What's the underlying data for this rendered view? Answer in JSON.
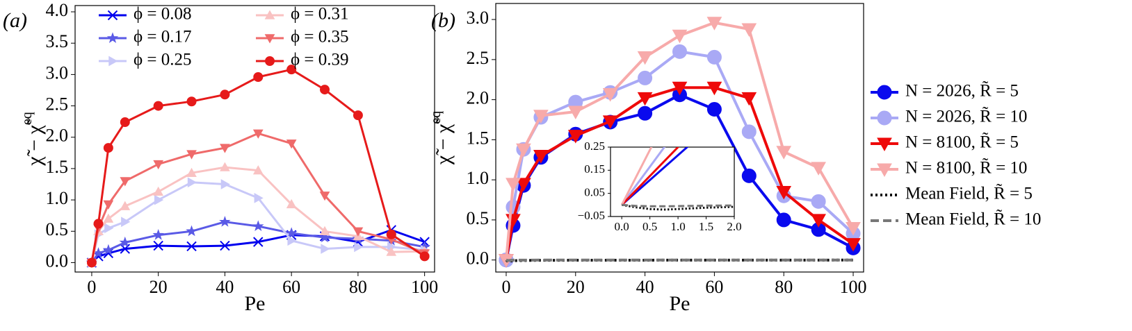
{
  "chart_data": [
    {
      "type": "line",
      "panel_label": "(a)",
      "x_label": "Pe",
      "y_label": "χ̃ − χ̃",
      "y_label_sup": "eq",
      "x": [
        0,
        2,
        5,
        10,
        20,
        30,
        40,
        50,
        60,
        70,
        80,
        90,
        100
      ],
      "xlim": [
        -5,
        103
      ],
      "ylim": [
        -0.15,
        4.1
      ],
      "xticks": [
        0,
        20,
        40,
        60,
        80,
        100
      ],
      "yticks": [
        {
          "value": 0,
          "label": "0.0"
        },
        {
          "value": 0.5,
          "label": "0.5"
        },
        {
          "value": 1,
          "label": "1.0"
        },
        {
          "value": 1.5,
          "label": "1.5"
        },
        {
          "value": 2,
          "label": "2.0"
        },
        {
          "value": 2.5,
          "label": "2.5"
        },
        {
          "value": 3,
          "label": "3.0"
        },
        {
          "value": 3.5,
          "label": "3.5"
        },
        {
          "value": 4,
          "label": "4.0"
        }
      ],
      "legend": "upper left",
      "series": [
        {
          "name": "ϕ = 0.08",
          "color": "#0000ee",
          "marker": "x",
          "values": [
            0,
            0.1,
            0.15,
            0.22,
            0.27,
            0.26,
            0.27,
            0.33,
            0.44,
            0.42,
            0.33,
            0.52,
            0.33
          ]
        },
        {
          "name": "ϕ = 0.17",
          "color": "#5a5ae6",
          "marker": "*",
          "values": [
            0,
            0.15,
            0.2,
            0.32,
            0.44,
            0.5,
            0.65,
            0.58,
            0.47,
            0.4,
            0.38,
            0.35,
            0.25
          ]
        },
        {
          "name": "ϕ = 0.25",
          "color": "#c8c8f8",
          "marker": ">",
          "values": [
            0,
            0.45,
            0.55,
            0.65,
            1.0,
            1.28,
            1.25,
            1.03,
            0.35,
            0.22,
            0.25,
            0.25,
            0.2
          ]
        },
        {
          "name": "ϕ = 0.31",
          "color": "#f9c2c2",
          "marker": "^",
          "values": [
            0,
            0.5,
            0.7,
            0.9,
            1.13,
            1.43,
            1.52,
            1.47,
            0.93,
            0.5,
            0.42,
            0.17,
            0.18
          ]
        },
        {
          "name": "ϕ = 0.35",
          "color": "#ef6a6a",
          "marker": "v",
          "values": [
            0,
            0.55,
            0.93,
            1.3,
            1.57,
            1.73,
            1.83,
            2.06,
            1.9,
            1.07,
            0.5,
            0.37,
            0.15
          ]
        },
        {
          "name": "ϕ = 0.39",
          "color": "#e61a1a",
          "marker": "o",
          "values": [
            0,
            0.62,
            1.83,
            2.24,
            2.5,
            2.57,
            2.68,
            2.96,
            3.08,
            2.76,
            2.35,
            0.45,
            0.1
          ]
        }
      ]
    },
    {
      "type": "line",
      "panel_label": "(b)",
      "x_label": "Pe",
      "y_label": "χ̃ − χ̃",
      "y_label_sup": "eq",
      "x": [
        0,
        2,
        5,
        10,
        20,
        30,
        40,
        50,
        60,
        70,
        80,
        90,
        100
      ],
      "xlim": [
        -3,
        103
      ],
      "ylim": [
        -0.15,
        3.2
      ],
      "xticks": [
        0,
        20,
        40,
        60,
        80,
        100
      ],
      "yticks": [
        {
          "value": 0,
          "label": "0.0"
        },
        {
          "value": 0.5,
          "label": "0.5"
        },
        {
          "value": 1,
          "label": "1.0"
        },
        {
          "value": 1.5,
          "label": "1.5"
        },
        {
          "value": 2,
          "label": "2.0"
        },
        {
          "value": 2.5,
          "label": "2.5"
        },
        {
          "value": 3,
          "label": "3.0"
        }
      ],
      "legend": "outside right",
      "series": [
        {
          "name": "N = 2026, R̃ = 5",
          "color": "#0a0aee",
          "marker": "o",
          "values": [
            0,
            0.43,
            0.93,
            1.28,
            1.57,
            1.72,
            1.83,
            2.06,
            1.88,
            1.05,
            0.5,
            0.38,
            0.15
          ]
        },
        {
          "name": "N = 2026, R̃ = 10",
          "color": "#a9a9f5",
          "marker": "o",
          "values": [
            0,
            0.66,
            1.38,
            1.78,
            1.97,
            2.09,
            2.27,
            2.6,
            2.53,
            1.6,
            0.8,
            0.73,
            0.33
          ]
        },
        {
          "name": "N = 8100, R̃ = 5",
          "color": "#ee0a0a",
          "marker": "v",
          "values": [
            0,
            0.5,
            0.95,
            1.3,
            1.55,
            1.73,
            2.02,
            2.15,
            2.15,
            2.02,
            0.85,
            0.5,
            0.2
          ]
        },
        {
          "name": "N = 8100, R̃ = 10",
          "color": "#f7aaaa",
          "marker": "v",
          "values": [
            0,
            0.95,
            1.38,
            1.8,
            1.85,
            2.07,
            2.53,
            2.8,
            2.96,
            2.88,
            1.35,
            1.15,
            0.4
          ]
        },
        {
          "name": "Mean Field, R̃ = 5",
          "color": "#111111",
          "style": "dotted",
          "x": [
            0,
            0.25,
            0.5,
            0.75,
            1,
            1.25,
            1.5,
            1.75,
            2,
            10,
            50,
            100
          ],
          "values": [
            0,
            -0.01,
            -0.018,
            -0.02,
            -0.018,
            -0.015,
            -0.012,
            -0.01,
            -0.008,
            -0.004,
            -0.002,
            -0.001
          ]
        },
        {
          "name": "Mean Field, R̃ = 10",
          "color": "#777777",
          "style": "dashed",
          "x": [
            0,
            0.25,
            0.5,
            0.75,
            1,
            1.25,
            1.5,
            1.75,
            2,
            10,
            50,
            100
          ],
          "values": [
            0,
            -0.004,
            -0.006,
            -0.006,
            -0.005,
            -0.004,
            -0.003,
            -0.003,
            -0.002,
            -0.001,
            -0.001,
            0
          ]
        }
      ],
      "inset": {
        "xlim": [
          -0.2,
          2
        ],
        "ylim": [
          -0.05,
          0.25
        ],
        "xticks": [
          {
            "value": 0,
            "label": "0.0"
          },
          {
            "value": 0.5,
            "label": "0.5"
          },
          {
            "value": 1,
            "label": "1.0"
          },
          {
            "value": 1.5,
            "label": "1.5"
          },
          {
            "value": 2,
            "label": "2.0"
          }
        ],
        "yticks": [
          {
            "value": -0.05,
            "label": "−0.05"
          },
          {
            "value": 0.05,
            "label": "0.05"
          },
          {
            "value": 0.15,
            "label": "0.15"
          },
          {
            "value": 0.25,
            "label": "0.25"
          }
        ]
      }
    }
  ]
}
